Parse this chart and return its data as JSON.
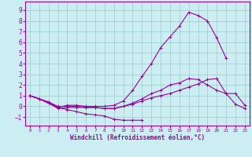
{
  "xlabel": "Windchill (Refroidissement éolien,°C)",
  "xlim": [
    -0.5,
    23.5
  ],
  "ylim": [
    -1.8,
    9.8
  ],
  "yticks": [
    -1,
    0,
    1,
    2,
    3,
    4,
    5,
    6,
    7,
    8,
    9
  ],
  "xticks": [
    0,
    1,
    2,
    3,
    4,
    5,
    6,
    7,
    8,
    9,
    10,
    11,
    12,
    13,
    14,
    15,
    16,
    17,
    18,
    19,
    20,
    21,
    22,
    23
  ],
  "bg_color": "#cceef2",
  "grid_color": "#99cccc",
  "line_color": "#990099",
  "curves": [
    [
      1.0,
      0.7,
      0.4,
      -0.1,
      -0.3,
      -0.5,
      -0.7,
      -0.8,
      -0.9,
      -1.2,
      -1.3,
      -1.3,
      -1.3,
      null,
      null,
      null,
      null,
      null,
      null,
      null,
      null,
      null,
      null,
      null
    ],
    [
      1.0,
      0.7,
      0.4,
      0.0,
      0.0,
      0.0,
      -0.1,
      -0.1,
      -0.2,
      -0.2,
      0.0,
      0.2,
      0.5,
      0.8,
      1.0,
      1.2,
      1.5,
      1.8,
      2.1,
      2.5,
      2.6,
      1.2,
      1.2,
      0.1
    ],
    [
      1.0,
      0.7,
      0.3,
      -0.2,
      -0.1,
      -0.1,
      -0.1,
      -0.1,
      -0.2,
      -0.2,
      0.0,
      0.3,
      0.7,
      1.2,
      1.5,
      2.0,
      2.2,
      2.6,
      2.5,
      2.0,
      1.5,
      1.2,
      0.2,
      -0.2
    ],
    [
      1.0,
      0.7,
      0.3,
      -0.1,
      0.1,
      0.1,
      0.0,
      0.0,
      0.0,
      0.1,
      0.5,
      1.5,
      2.8,
      4.0,
      5.5,
      6.5,
      7.5,
      8.8,
      8.5,
      8.0,
      6.4,
      4.5,
      null,
      null
    ]
  ]
}
